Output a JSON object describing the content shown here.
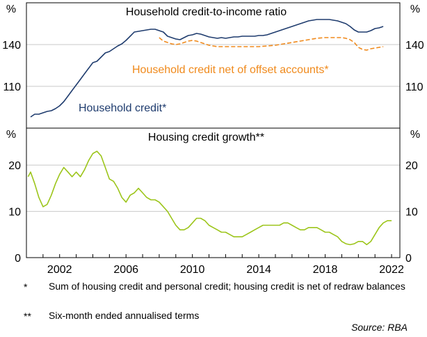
{
  "colors": {
    "household_credit": "#1f3c6e",
    "offset": "#f08a1c",
    "housing_growth": "#9cc51a",
    "grid": "#c8c8c8",
    "axis": "#000000"
  },
  "chart_data": [
    {
      "type": "line",
      "title": "Household credit-to-income ratio",
      "ylabel_left": "%",
      "ylabel_right": "%",
      "ylim": [
        80,
        170
      ],
      "yticks": [
        110,
        140
      ],
      "xlim": [
        2000.0,
        2022.5
      ],
      "grid": true,
      "series": [
        {
          "name": "Household credit*",
          "color": "#1f3c6e",
          "style": "solid",
          "points": [
            [
              2000.25,
              88
            ],
            [
              2000.5,
              90
            ],
            [
              2000.75,
              90
            ],
            [
              2001.0,
              91
            ],
            [
              2001.25,
              92
            ],
            [
              2001.5,
              92.5
            ],
            [
              2001.75,
              94
            ],
            [
              2002.0,
              96
            ],
            [
              2002.25,
              99
            ],
            [
              2002.5,
              103
            ],
            [
              2002.75,
              107
            ],
            [
              2003.0,
              111
            ],
            [
              2003.25,
              115
            ],
            [
              2003.5,
              119
            ],
            [
              2003.75,
              123
            ],
            [
              2004.0,
              127
            ],
            [
              2004.25,
              128
            ],
            [
              2004.5,
              131
            ],
            [
              2004.75,
              134
            ],
            [
              2005.0,
              135
            ],
            [
              2005.25,
              137
            ],
            [
              2005.5,
              139
            ],
            [
              2005.75,
              140.5
            ],
            [
              2006.0,
              143
            ],
            [
              2006.25,
              146
            ],
            [
              2006.5,
              149
            ],
            [
              2006.75,
              149.5
            ],
            [
              2007.0,
              150
            ],
            [
              2007.25,
              150.5
            ],
            [
              2007.5,
              151
            ],
            [
              2007.75,
              151
            ],
            [
              2008.0,
              150
            ],
            [
              2008.25,
              149
            ],
            [
              2008.5,
              146
            ],
            [
              2008.75,
              145
            ],
            [
              2009.0,
              144
            ],
            [
              2009.25,
              143.5
            ],
            [
              2009.5,
              145
            ],
            [
              2009.75,
              146.5
            ],
            [
              2010.0,
              147
            ],
            [
              2010.25,
              148
            ],
            [
              2010.5,
              147.5
            ],
            [
              2010.75,
              146.5
            ],
            [
              2011.0,
              145.5
            ],
            [
              2011.25,
              145
            ],
            [
              2011.5,
              144.5
            ],
            [
              2011.75,
              145
            ],
            [
              2012.0,
              144.5
            ],
            [
              2012.25,
              145
            ],
            [
              2012.5,
              145.5
            ],
            [
              2012.75,
              145.5
            ],
            [
              2013.0,
              146
            ],
            [
              2013.25,
              146
            ],
            [
              2013.5,
              146
            ],
            [
              2013.75,
              146
            ],
            [
              2014.0,
              146.5
            ],
            [
              2014.25,
              146.5
            ],
            [
              2014.5,
              147
            ],
            [
              2014.75,
              148
            ],
            [
              2015.0,
              149
            ],
            [
              2015.25,
              150
            ],
            [
              2015.5,
              151
            ],
            [
              2015.75,
              152
            ],
            [
              2016.0,
              153
            ],
            [
              2016.25,
              154
            ],
            [
              2016.5,
              155
            ],
            [
              2016.75,
              156
            ],
            [
              2017.0,
              157
            ],
            [
              2017.25,
              157.5
            ],
            [
              2017.5,
              158
            ],
            [
              2017.75,
              158
            ],
            [
              2018.0,
              158
            ],
            [
              2018.25,
              158
            ],
            [
              2018.5,
              157.5
            ],
            [
              2018.75,
              157
            ],
            [
              2019.0,
              156
            ],
            [
              2019.25,
              155
            ],
            [
              2019.5,
              153
            ],
            [
              2019.75,
              150.5
            ],
            [
              2020.0,
              149
            ],
            [
              2020.25,
              149
            ],
            [
              2020.5,
              149
            ],
            [
              2020.75,
              150
            ],
            [
              2021.0,
              151.5
            ],
            [
              2021.25,
              152
            ],
            [
              2021.5,
              153
            ]
          ]
        },
        {
          "name": "Household credit net of offset accounts*",
          "color": "#f08a1c",
          "style": "dashed",
          "points": [
            [
              2008.0,
              145
            ],
            [
              2008.25,
              142.5
            ],
            [
              2008.5,
              141.5
            ],
            [
              2008.75,
              140.5
            ],
            [
              2009.0,
              140
            ],
            [
              2009.25,
              140.5
            ],
            [
              2009.5,
              141.5
            ],
            [
              2009.75,
              142.5
            ],
            [
              2010.0,
              143
            ],
            [
              2010.25,
              142.5
            ],
            [
              2010.5,
              141.5
            ],
            [
              2010.75,
              140.5
            ],
            [
              2011.0,
              139.5
            ],
            [
              2011.25,
              139
            ],
            [
              2011.5,
              138.5
            ],
            [
              2011.75,
              138.5
            ],
            [
              2012.0,
              138.5
            ],
            [
              2012.5,
              138.5
            ],
            [
              2013.0,
              138.5
            ],
            [
              2013.5,
              138.5
            ],
            [
              2014.0,
              138.5
            ],
            [
              2014.5,
              139
            ],
            [
              2015.0,
              139.5
            ],
            [
              2015.5,
              140.5
            ],
            [
              2016.0,
              141.5
            ],
            [
              2016.5,
              142.5
            ],
            [
              2017.0,
              143.5
            ],
            [
              2017.5,
              144.5
            ],
            [
              2018.0,
              145
            ],
            [
              2018.5,
              145
            ],
            [
              2019.0,
              145
            ],
            [
              2019.25,
              144.5
            ],
            [
              2019.5,
              143.5
            ],
            [
              2019.75,
              141.5
            ],
            [
              2020.0,
              138
            ],
            [
              2020.25,
              136.5
            ],
            [
              2020.5,
              136
            ],
            [
              2020.75,
              137
            ],
            [
              2021.0,
              137.5
            ],
            [
              2021.25,
              138
            ],
            [
              2021.5,
              138.5
            ]
          ]
        }
      ],
      "annotations": [
        {
          "text": "Household credit net of offset accounts*",
          "series": 1
        },
        {
          "text": "Household credit*",
          "series": 0
        }
      ]
    },
    {
      "type": "line",
      "title": "Housing credit growth**",
      "ylabel_left": "%",
      "ylabel_right": "%",
      "ylim": [
        0,
        28
      ],
      "yticks": [
        0,
        10,
        20
      ],
      "xlim": [
        2000.0,
        2022.5
      ],
      "xticks": [
        "2002",
        "2006",
        "2010",
        "2014",
        "2018",
        "2022"
      ],
      "grid": true,
      "series": [
        {
          "name": "",
          "color": "#9cc51a",
          "style": "solid",
          "points": [
            [
              2000.1,
              17.5
            ],
            [
              2000.25,
              18.5
            ],
            [
              2000.5,
              16
            ],
            [
              2000.75,
              13
            ],
            [
              2001.0,
              11
            ],
            [
              2001.25,
              11.5
            ],
            [
              2001.5,
              13.5
            ],
            [
              2001.75,
              16
            ],
            [
              2002.0,
              18
            ],
            [
              2002.25,
              19.5
            ],
            [
              2002.5,
              18.5
            ],
            [
              2002.75,
              17.5
            ],
            [
              2003.0,
              18.5
            ],
            [
              2003.25,
              17.5
            ],
            [
              2003.5,
              19
            ],
            [
              2003.75,
              21
            ],
            [
              2004.0,
              22.5
            ],
            [
              2004.25,
              23
            ],
            [
              2004.5,
              22
            ],
            [
              2004.75,
              19.5
            ],
            [
              2005.0,
              17
            ],
            [
              2005.25,
              16.5
            ],
            [
              2005.5,
              15
            ],
            [
              2005.75,
              13
            ],
            [
              2006.0,
              12
            ],
            [
              2006.25,
              13.5
            ],
            [
              2006.5,
              14
            ],
            [
              2006.75,
              15
            ],
            [
              2007.0,
              14
            ],
            [
              2007.25,
              13
            ],
            [
              2007.5,
              12.5
            ],
            [
              2007.75,
              12.5
            ],
            [
              2008.0,
              12
            ],
            [
              2008.25,
              11
            ],
            [
              2008.5,
              10
            ],
            [
              2008.75,
              8.5
            ],
            [
              2009.0,
              7
            ],
            [
              2009.25,
              6
            ],
            [
              2009.5,
              6
            ],
            [
              2009.75,
              6.5
            ],
            [
              2010.0,
              7.5
            ],
            [
              2010.25,
              8.5
            ],
            [
              2010.5,
              8.5
            ],
            [
              2010.75,
              8
            ],
            [
              2011.0,
              7
            ],
            [
              2011.25,
              6.5
            ],
            [
              2011.5,
              6
            ],
            [
              2011.75,
              5.5
            ],
            [
              2012.0,
              5.5
            ],
            [
              2012.25,
              5
            ],
            [
              2012.5,
              4.5
            ],
            [
              2012.75,
              4.5
            ],
            [
              2013.0,
              4.5
            ],
            [
              2013.25,
              5
            ],
            [
              2013.5,
              5.5
            ],
            [
              2013.75,
              6
            ],
            [
              2014.0,
              6.5
            ],
            [
              2014.25,
              7
            ],
            [
              2014.5,
              7
            ],
            [
              2014.75,
              7
            ],
            [
              2015.0,
              7
            ],
            [
              2015.25,
              7
            ],
            [
              2015.5,
              7.5
            ],
            [
              2015.75,
              7.5
            ],
            [
              2016.0,
              7
            ],
            [
              2016.25,
              6.5
            ],
            [
              2016.5,
              6
            ],
            [
              2016.75,
              6
            ],
            [
              2017.0,
              6.5
            ],
            [
              2017.25,
              6.5
            ],
            [
              2017.5,
              6.5
            ],
            [
              2017.75,
              6
            ],
            [
              2018.0,
              5.5
            ],
            [
              2018.25,
              5.5
            ],
            [
              2018.5,
              5
            ],
            [
              2018.75,
              4.5
            ],
            [
              2019.0,
              3.5
            ],
            [
              2019.25,
              3
            ],
            [
              2019.5,
              2.8
            ],
            [
              2019.75,
              3
            ],
            [
              2020.0,
              3.5
            ],
            [
              2020.25,
              3.5
            ],
            [
              2020.5,
              2.8
            ],
            [
              2020.75,
              3.5
            ],
            [
              2021.0,
              5
            ],
            [
              2021.25,
              6.5
            ],
            [
              2021.5,
              7.5
            ],
            [
              2021.75,
              8
            ],
            [
              2022.0,
              8
            ]
          ]
        }
      ]
    }
  ],
  "footnotes": [
    {
      "mark": "*",
      "text": "Sum of housing credit and personal credit; housing credit is net of redraw balances"
    },
    {
      "mark": "**",
      "text": "Six-month ended  annualised terms"
    }
  ],
  "source": "Source: RBA"
}
